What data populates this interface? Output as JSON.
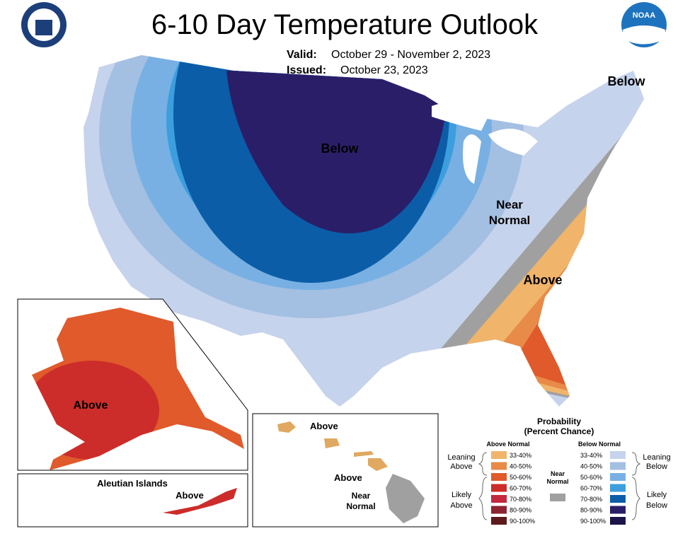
{
  "header": {
    "title": "6-10 Day Temperature Outlook",
    "valid_label": "Valid:",
    "valid_dates": "October 29 - November 2, 2023",
    "issued_label": "Issued:",
    "issued_date": "October 23, 2023",
    "noaa_logo": "NOAA"
  },
  "map_labels": {
    "conus_below_center": "Below",
    "conus_below_northeast": "Below",
    "conus_near_normal": [
      "Near",
      "Normal"
    ],
    "conus_above": "Above",
    "alaska_above": "Above",
    "aleutian_title": "Aleutian Islands",
    "aleutian_above": "Above",
    "hawaii_above_1": "Above",
    "hawaii_above_2": "Above",
    "hawaii_near_normal": [
      "Near",
      "Normal"
    ]
  },
  "legend": {
    "title": [
      "Probability",
      "(Percent Chance)"
    ],
    "above_header": "Above Normal",
    "below_header": "Below Normal",
    "above_levels": [
      "33-40%",
      "40-50%",
      "50-60%",
      "60-70%",
      "70-80%",
      "80-90%",
      "90-100%"
    ],
    "above_colors": [
      "#f0b56a",
      "#e88a48",
      "#e05a2b",
      "#cc2d2a",
      "#c3283f",
      "#8e2331",
      "#5e1a1a"
    ],
    "below_levels": [
      "33-40%",
      "40-50%",
      "50-60%",
      "60-70%",
      "70-80%",
      "80-90%",
      "90-100%"
    ],
    "below_colors": [
      "#c6d3ec",
      "#a3bfe2",
      "#78b0e3",
      "#3d9ede",
      "#0b5da8",
      "#2b1e69",
      "#1c1448"
    ],
    "near_normal": [
      "Near",
      "Normal"
    ],
    "near_color": "#a0a0a0",
    "leaning_above": [
      "Leaning",
      "Above"
    ],
    "likely_above": [
      "Likely",
      "Above"
    ],
    "leaning_below": [
      "Leaning",
      "Below"
    ],
    "likely_below": [
      "Likely",
      "Below"
    ]
  }
}
